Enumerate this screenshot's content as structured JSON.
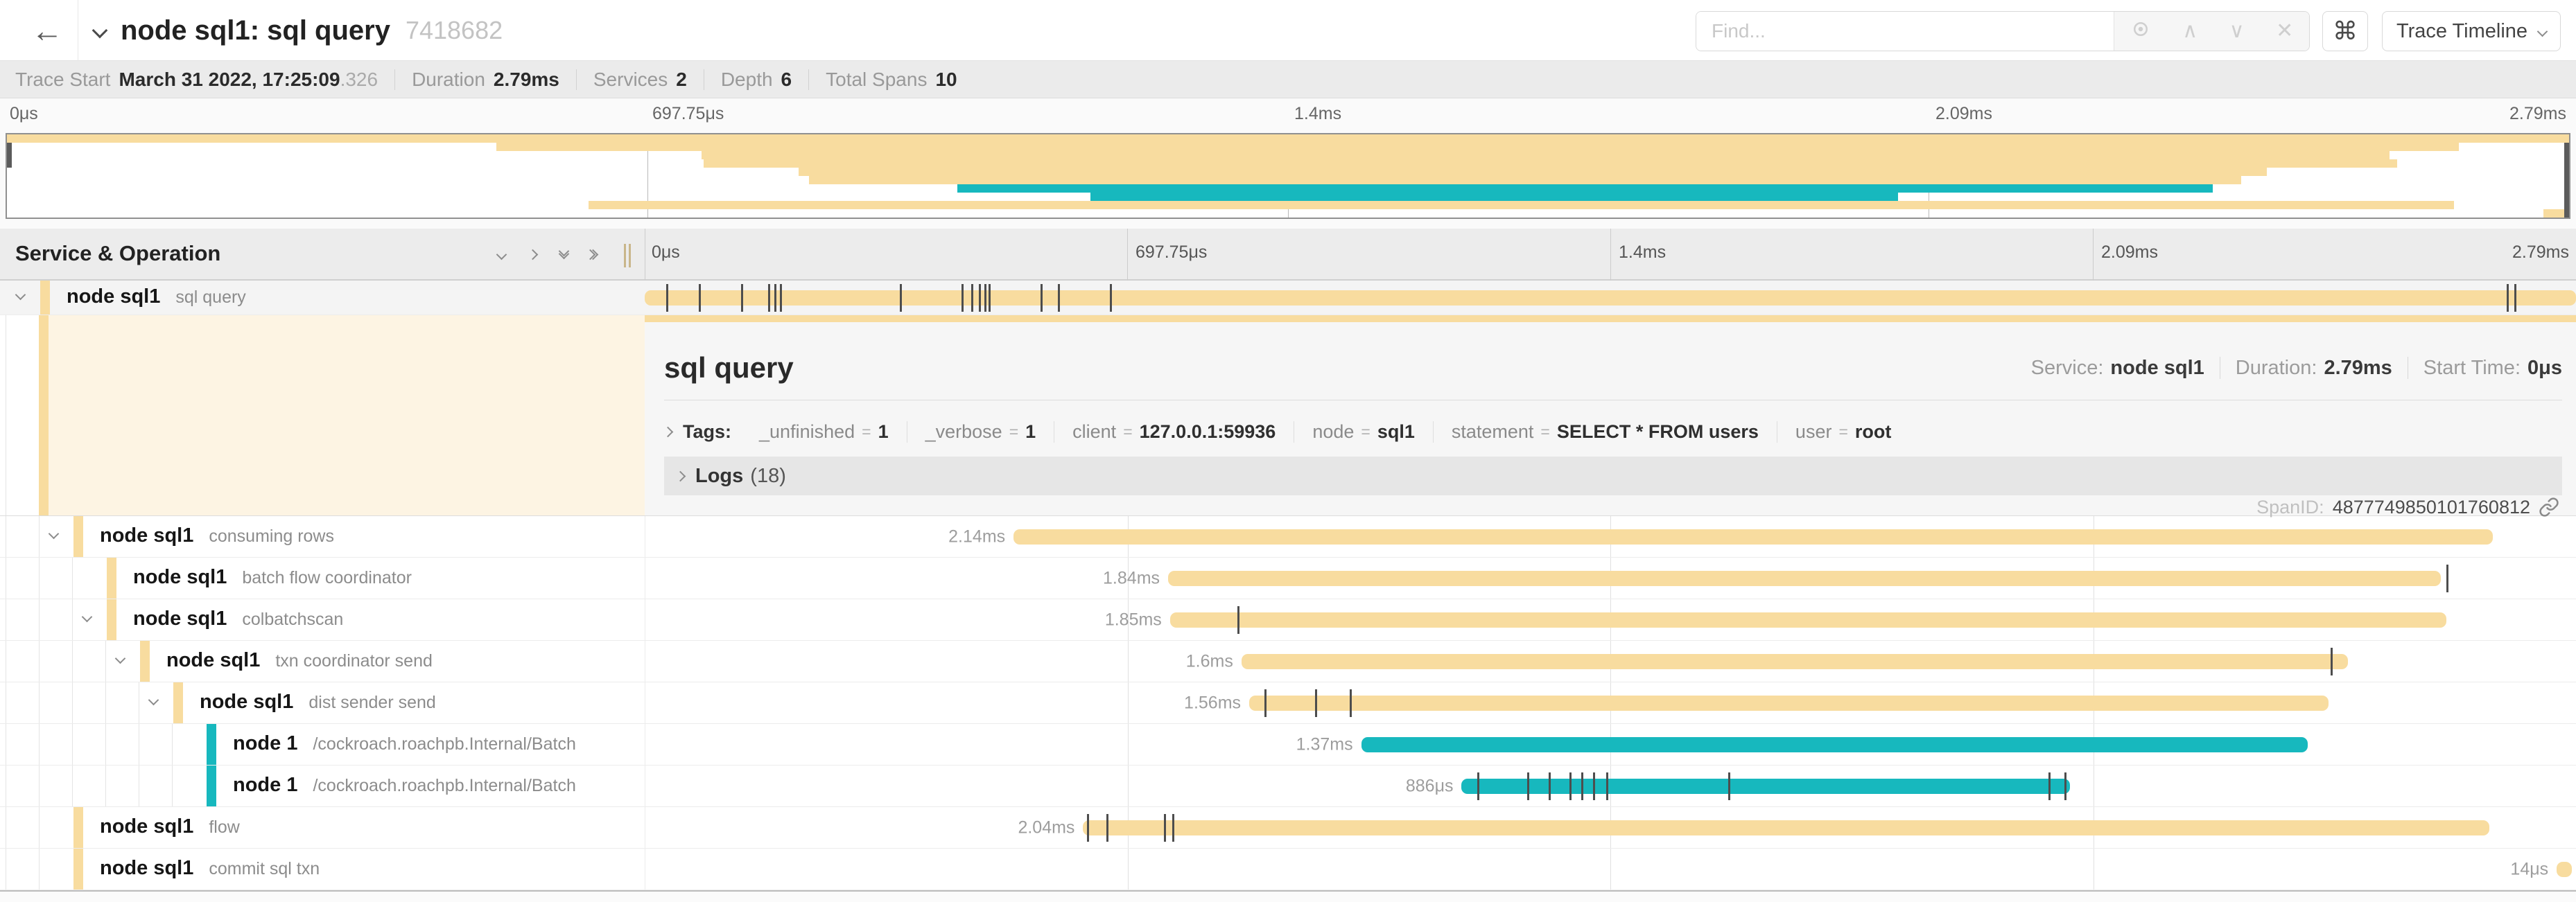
{
  "header": {
    "back_icon": "←",
    "title": "node sql1: sql query",
    "trace_id": "7418682",
    "find_placeholder": "Find...",
    "find_tools": [
      "crosshair-icon",
      "chevron-up-icon",
      "chevron-down-icon",
      "close-icon"
    ],
    "keyboard_shortcut_button": "⌘",
    "view_dropdown_label": "Trace Timeline"
  },
  "trace_info": {
    "trace_start_label": "Trace Start",
    "trace_start_value": "March 31 2022, 17:25:09",
    "trace_start_fraction": ".326",
    "duration_label": "Duration",
    "duration_value": "2.79ms",
    "services_label": "Services",
    "services_value": "2",
    "depth_label": "Depth",
    "depth_value": "6",
    "total_spans_label": "Total Spans",
    "total_spans_value": "10"
  },
  "timeline_ticks": [
    "0μs",
    "697.75μs",
    "1.4ms",
    "2.09ms",
    "2.79ms"
  ],
  "section": {
    "left_title": "Service & Operation"
  },
  "colors": {
    "tan": "#F8DC9F",
    "teal": "#17B8BE",
    "cream": "#FDF4E3"
  },
  "detail": {
    "title": "sql query",
    "service_label": "Service:",
    "service_value": "node sql1",
    "duration_label": "Duration:",
    "duration_value": "2.79ms",
    "start_label": "Start Time:",
    "start_value": "0μs",
    "tags_label": "Tags:",
    "tags": [
      {
        "key": "_unfinished",
        "value": "1"
      },
      {
        "key": "_verbose",
        "value": "1"
      },
      {
        "key": "client",
        "value": "127.0.0.1:59936"
      },
      {
        "key": "node",
        "value": "sql1"
      },
      {
        "key": "statement",
        "value": "SELECT * FROM users"
      },
      {
        "key": "user",
        "value": "root"
      }
    ],
    "logs_label": "Logs",
    "logs_count": "(18)",
    "span_id_label": "SpanID:",
    "span_id_value": "4877749850101760812"
  },
  "spans": [
    {
      "service": "node sql1",
      "operation": "sql query",
      "depth": 0,
      "expandable": true,
      "color": "tan",
      "start": 0.0,
      "end": 1.0,
      "duration_label": "",
      "ticks": [
        0.011,
        0.028,
        0.05,
        0.064,
        0.067,
        0.07,
        0.132,
        0.164,
        0.169,
        0.173,
        0.176,
        0.178,
        0.205,
        0.214,
        0.241,
        0.964,
        0.968
      ],
      "selected": true
    },
    {
      "service": "node sql1",
      "operation": "consuming rows",
      "depth": 1,
      "expandable": true,
      "color": "tan",
      "start": 0.191,
      "end": 0.957,
      "duration_label": "2.14ms",
      "ticks": []
    },
    {
      "service": "node sql1",
      "operation": "batch flow coordinator",
      "depth": 2,
      "expandable": false,
      "color": "tan",
      "start": 0.271,
      "end": 0.93,
      "duration_label": "1.84ms",
      "ticks": [
        0.933
      ]
    },
    {
      "service": "node sql1",
      "operation": "colbatchscan",
      "depth": 2,
      "expandable": true,
      "color": "tan",
      "start": 0.272,
      "end": 0.933,
      "duration_label": "1.85ms",
      "ticks": [
        0.307
      ]
    },
    {
      "service": "node sql1",
      "operation": "txn coordinator send",
      "depth": 3,
      "expandable": true,
      "color": "tan",
      "start": 0.309,
      "end": 0.882,
      "duration_label": "1.6ms",
      "ticks": [
        0.873
      ]
    },
    {
      "service": "node sql1",
      "operation": "dist sender send",
      "depth": 4,
      "expandable": true,
      "color": "tan",
      "start": 0.313,
      "end": 0.872,
      "duration_label": "1.56ms",
      "ticks": [
        0.321,
        0.347,
        0.365
      ]
    },
    {
      "service": "node 1",
      "operation": "/cockroach.roachpb.Internal/Batch",
      "depth": 5,
      "expandable": false,
      "color": "teal",
      "start": 0.371,
      "end": 0.861,
      "duration_label": "1.37ms",
      "ticks": []
    },
    {
      "service": "node 1",
      "operation": "/cockroach.roachpb.Internal/Batch",
      "depth": 5,
      "expandable": false,
      "color": "teal",
      "start": 0.423,
      "end": 0.738,
      "duration_label": "886μs",
      "ticks": [
        0.431,
        0.457,
        0.468,
        0.479,
        0.485,
        0.491,
        0.498,
        0.561,
        0.727,
        0.735
      ]
    },
    {
      "service": "node sql1",
      "operation": "flow",
      "depth": 1,
      "expandable": false,
      "color": "tan",
      "start": 0.227,
      "end": 0.955,
      "duration_label": "2.04ms",
      "ticks": [
        0.229,
        0.239,
        0.269,
        0.273
      ]
    },
    {
      "service": "node sql1",
      "operation": "commit sql txn",
      "depth": 1,
      "expandable": false,
      "color": "tan",
      "start": 0.99,
      "end": 0.998,
      "duration_label": "14μs",
      "ticks": []
    }
  ]
}
